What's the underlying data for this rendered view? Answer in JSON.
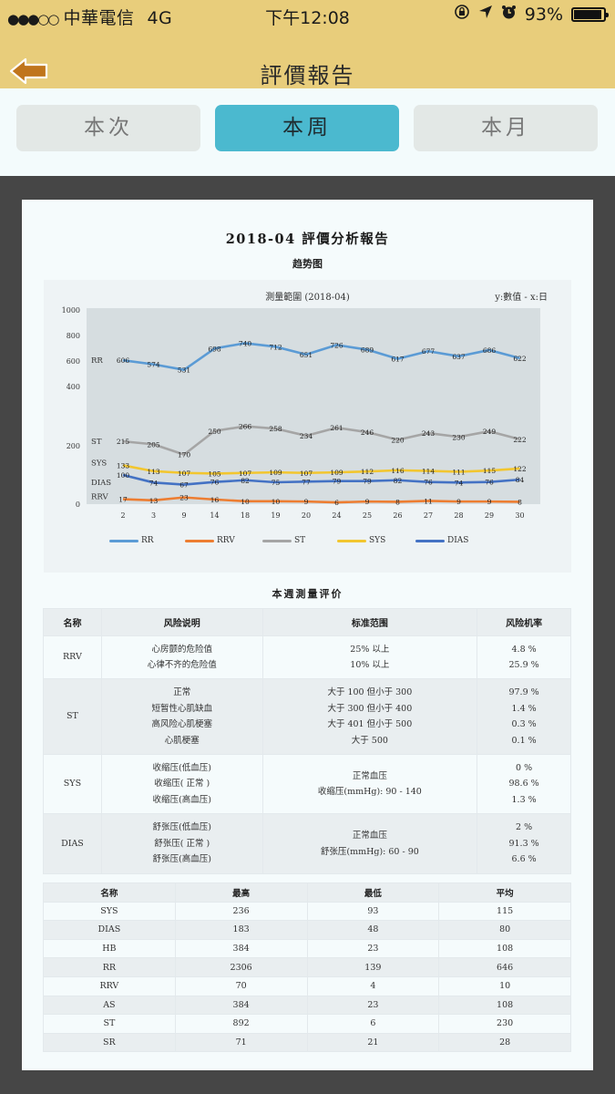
{
  "status_bar": {
    "signal": "●●●○○",
    "carrier": "中華電信",
    "network": "4G",
    "time": "下午12:08",
    "icons": [
      "rotation-lock-icon",
      "location-arrow-icon",
      "alarm-icon"
    ],
    "battery": "93%"
  },
  "nav": {
    "back_icon": "back-arrow-icon",
    "title": "評價報告"
  },
  "tabs": [
    {
      "label": "本次",
      "active": false
    },
    {
      "label": "本周",
      "active": true
    },
    {
      "label": "本月",
      "active": false
    }
  ],
  "report": {
    "title": "2018-04 評價分析報告",
    "chart_section_title": "趋势图",
    "chart_header": "測量範圍 (2018-04)",
    "chart_axis_note": "y:數值 - x:日",
    "evaluation_title": "本週測量评价"
  },
  "chart_data": {
    "type": "line",
    "title": "測量範圍 (2018-04)",
    "xlabel": "日",
    "ylabel": "數值",
    "y_ticks": [
      0,
      200,
      400,
      600,
      800,
      1000
    ],
    "ylim": [
      0,
      1000
    ],
    "grid": false,
    "legend_position": "bottom",
    "categories": [
      "2",
      "3",
      "9",
      "14",
      "18",
      "19",
      "20",
      "24",
      "25",
      "26",
      "27",
      "28",
      "29",
      "30"
    ],
    "series": [
      {
        "name": "RR",
        "color": "#5b9bd5",
        "values": [
          606,
          574,
          531,
          698,
          740,
          712,
          651,
          726,
          689,
          617,
          677,
          637,
          686,
          622
        ]
      },
      {
        "name": "RRV",
        "color": "#ed7d31",
        "values": [
          17,
          13,
          23,
          16,
          10,
          10,
          9,
          6,
          9,
          8,
          11,
          9,
          9,
          8
        ]
      },
      {
        "name": "ST",
        "color": "#a5a5a5",
        "values": [
          215,
          205,
          170,
          250,
          266,
          258,
          234,
          261,
          246,
          220,
          243,
          230,
          249,
          222
        ]
      },
      {
        "name": "SYS",
        "color": "#f2c62f",
        "values": [
          133,
          113,
          107,
          105,
          107,
          109,
          107,
          109,
          112,
          116,
          114,
          111,
          115,
          122
        ]
      },
      {
        "name": "DIAS",
        "color": "#4472c4",
        "values": [
          100,
          74,
          67,
          76,
          82,
          75,
          77,
          79,
          79,
          82,
          76,
          74,
          76,
          84
        ]
      }
    ]
  },
  "risk_table": {
    "headers": [
      "名称",
      "风险说明",
      "标准范围",
      "风险机率"
    ],
    "rows": [
      {
        "name": "RRV",
        "descriptions": [
          "心房颤的危险值",
          "心律不齐的危险值"
        ],
        "ranges": [
          "25% 以上",
          "10% 以上"
        ],
        "rates": [
          "4.8 %",
          "25.9 %"
        ]
      },
      {
        "name": "ST",
        "descriptions": [
          "正常",
          "短暂性心肌缺血",
          "高风险心肌梗塞",
          "心肌梗塞"
        ],
        "ranges": [
          "大于 100 但小于 300",
          "大于 300 但小于 400",
          "大于 401 但小于 500",
          "大于 500"
        ],
        "rates": [
          "97.9 %",
          "1.4 %",
          "0.3 %",
          "0.1 %"
        ]
      },
      {
        "name": "SYS",
        "descriptions": [
          "收缩压(低血压)",
          "收缩压( 正常 )",
          "收缩压(高血压)"
        ],
        "ranges": [
          "正常血压",
          "收缩压(mmHg): 90 - 140"
        ],
        "rates": [
          "0 %",
          "98.6 %",
          "1.3 %"
        ]
      },
      {
        "name": "DIAS",
        "descriptions": [
          "舒张压(低血压)",
          "舒张压( 正常 )",
          "舒张压(高血压)"
        ],
        "ranges": [
          "正常血压",
          "舒张压(mmHg): 60 - 90"
        ],
        "rates": [
          "2 %",
          "91.3 %",
          "6.6 %"
        ]
      }
    ]
  },
  "stats_table": {
    "headers": [
      "名称",
      "最高",
      "最低",
      "平均"
    ],
    "rows": [
      [
        "SYS",
        "236",
        "93",
        "115"
      ],
      [
        "DIAS",
        "183",
        "48",
        "80"
      ],
      [
        "HB",
        "384",
        "23",
        "108"
      ],
      [
        "RR",
        "2306",
        "139",
        "646"
      ],
      [
        "RRV",
        "70",
        "4",
        "10"
      ],
      [
        "AS",
        "384",
        "23",
        "108"
      ],
      [
        "ST",
        "892",
        "6",
        "230"
      ],
      [
        "SR",
        "71",
        "21",
        "28"
      ]
    ]
  },
  "colors": {
    "header_bg": "#e8cd7b",
    "tab_active": "#4bb9cf",
    "tab_inactive": "#e3e8e6",
    "frame_bg": "#464646",
    "back_arrow": "#c0751c"
  }
}
